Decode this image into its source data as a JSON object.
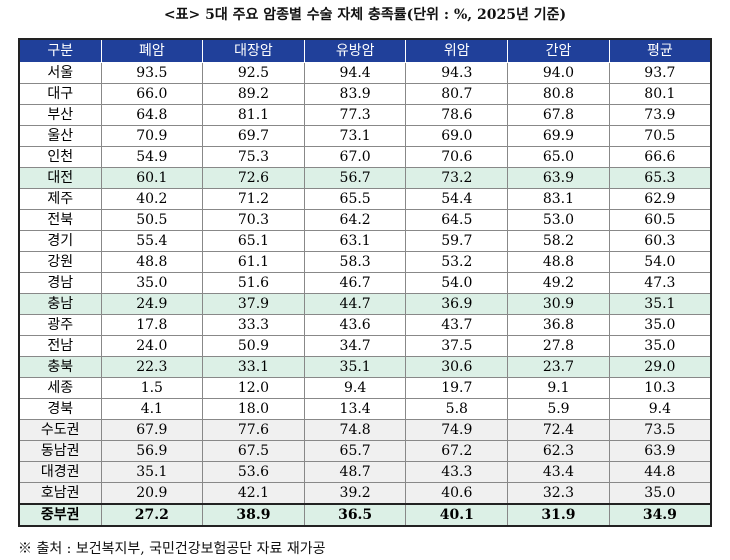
{
  "title": "<표> 5대 주요 암종별 수술 자체 충족률(단위 : %, 2025년 기준)",
  "table": {
    "header": [
      "구분",
      "폐암",
      "대장암",
      "유방암",
      "위암",
      "간암",
      "평균"
    ],
    "rows": [
      [
        "서울",
        "93.5",
        "92.5",
        "94.4",
        "94.3",
        "94.0",
        "93.7"
      ],
      [
        "대구",
        "66.0",
        "89.2",
        "83.9",
        "80.7",
        "80.8",
        "80.1"
      ],
      [
        "부산",
        "64.8",
        "81.1",
        "77.3",
        "78.6",
        "67.8",
        "73.9"
      ],
      [
        "울산",
        "70.9",
        "69.7",
        "73.1",
        "69.0",
        "69.9",
        "70.5"
      ],
      [
        "인천",
        "54.9",
        "75.3",
        "67.0",
        "70.6",
        "65.0",
        "66.6"
      ],
      [
        "대전",
        "60.1",
        "72.6",
        "56.7",
        "73.2",
        "63.9",
        "65.3"
      ],
      [
        "제주",
        "40.2",
        "71.2",
        "65.5",
        "54.4",
        "83.1",
        "62.9"
      ],
      [
        "전북",
        "50.5",
        "70.3",
        "64.2",
        "64.5",
        "53.0",
        "60.5"
      ],
      [
        "경기",
        "55.4",
        "65.1",
        "63.1",
        "59.7",
        "58.2",
        "60.3"
      ],
      [
        "강원",
        "48.8",
        "61.1",
        "58.3",
        "53.2",
        "48.8",
        "54.0"
      ],
      [
        "경남",
        "35.0",
        "51.6",
        "46.7",
        "54.0",
        "49.2",
        "47.3"
      ],
      [
        "충남",
        "24.9",
        "37.9",
        "44.7",
        "36.9",
        "30.9",
        "35.1"
      ],
      [
        "광주",
        "17.8",
        "33.3",
        "43.6",
        "43.7",
        "36.8",
        "35.0"
      ],
      [
        "전남",
        "24.0",
        "50.9",
        "34.7",
        "37.5",
        "27.8",
        "35.0"
      ],
      [
        "충북",
        "22.3",
        "33.1",
        "35.1",
        "30.6",
        "23.7",
        "29.0"
      ],
      [
        "세종",
        "1.5",
        "12.0",
        "9.4",
        "19.7",
        "9.1",
        "10.3"
      ],
      [
        "경북",
        "4.1",
        "18.0",
        "13.4",
        "5.8",
        "5.9",
        "9.4"
      ],
      [
        "수도권",
        "67.9",
        "77.6",
        "74.8",
        "74.9",
        "72.4",
        "73.5"
      ],
      [
        "동남권",
        "56.9",
        "67.5",
        "65.7",
        "67.2",
        "62.3",
        "63.9"
      ],
      [
        "대경권",
        "35.1",
        "53.6",
        "48.7",
        "43.3",
        "43.4",
        "44.8"
      ],
      [
        "호남권",
        "20.9",
        "42.1",
        "39.2",
        "40.6",
        "32.3",
        "35.0"
      ],
      [
        "중부권",
        "27.2",
        "38.9",
        "36.5",
        "40.1",
        "31.9",
        "34.9"
      ]
    ]
  },
  "source": "※ 출처 : 보건복지부, 국민건강보험공단 자료 재가공"
}
